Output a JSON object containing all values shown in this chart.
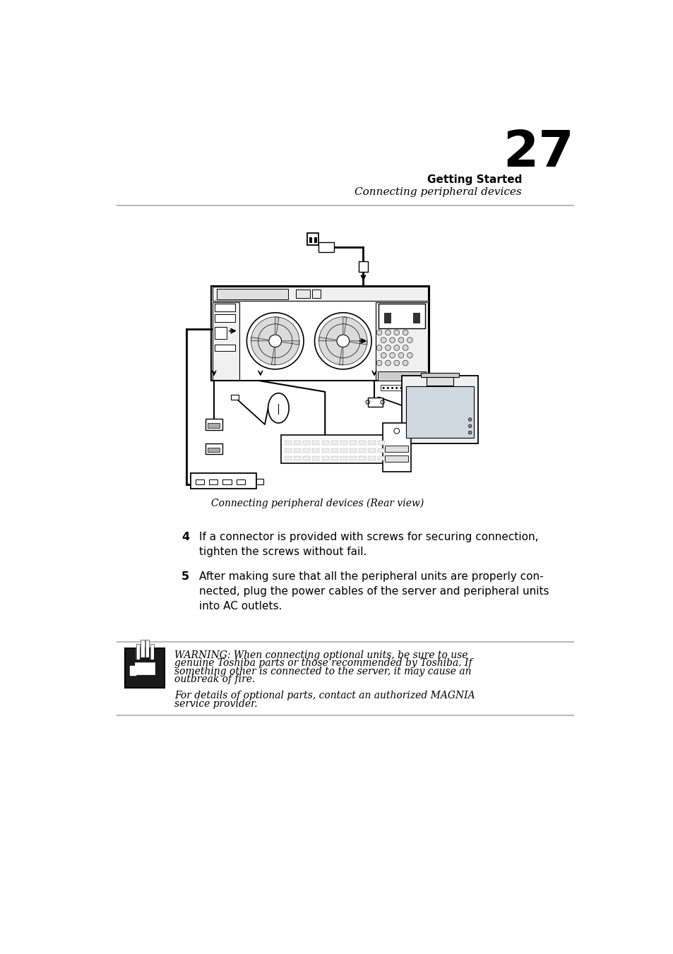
{
  "bg_color": "#ffffff",
  "header_bold": "Getting Started",
  "header_italic": "Connecting peripheral devices",
  "page_number": "27",
  "divider_color": "#bbbbbb",
  "caption": "Connecting peripheral devices (Rear view)",
  "step4_num": "4",
  "step4_text": "If a connector is provided with screws for securing connection,\ntighten the screws without fail.",
  "step5_num": "5",
  "step5_text": "After making sure that all the peripheral units are properly con-\nnected, plug the power cables of the server and peripheral units\ninto AC outlets.",
  "warning_text_line1": "WARNING: When connecting optional units, be sure to use",
  "warning_text_line2": "genuine Toshiba parts or those recommended by Toshiba. If",
  "warning_text_line3": "something other is connected to the server, it may cause an",
  "warning_text_line4": "outbreak of fire.",
  "warning_text_line5": "For details of optional parts, contact an authorized MAGNIA",
  "warning_text_line6": "service provider."
}
